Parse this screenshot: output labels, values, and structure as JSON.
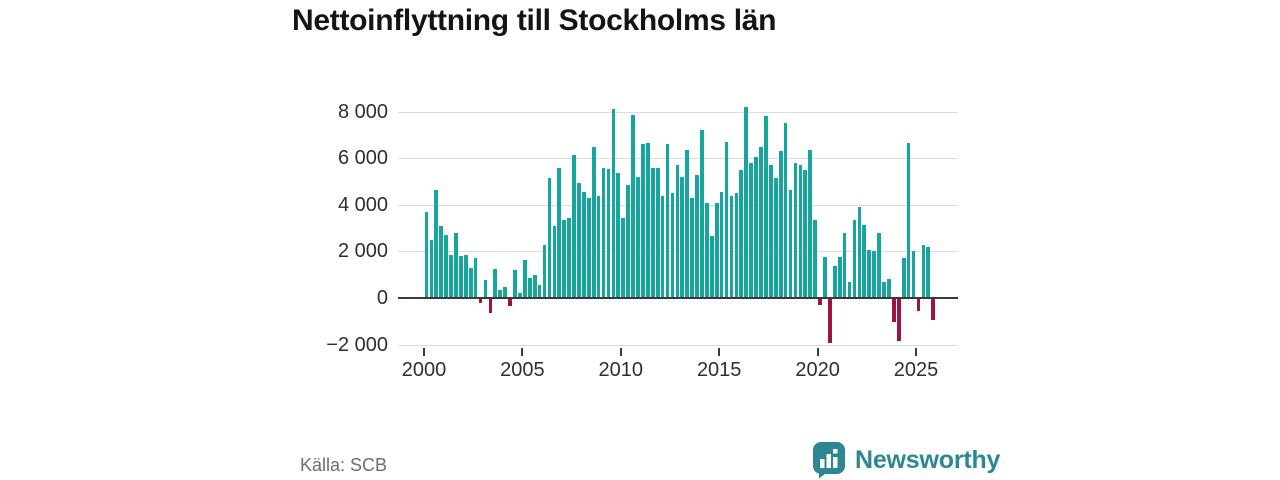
{
  "title": "Nettoinflyttning till Stockholms län",
  "source": "Källa: SCB",
  "brand": {
    "name": "Newsworthy"
  },
  "colors": {
    "bar_positive": "#16a69d",
    "bar_negative": "#9e1343",
    "brand_teal": "#2c8795",
    "gridline": "#dcdcdc",
    "axis": "#3a3a3a"
  },
  "chart_data": {
    "type": "bar",
    "title": "Nettoinflyttning till Stockholms län",
    "xlabel": "",
    "ylabel": "",
    "frequency": "quarterly",
    "start_period": "2000Q1",
    "end_period": "2025Q4",
    "ylim": [
      -2000,
      8000
    ],
    "grid": true,
    "y_ticks": [
      {
        "value": 8000,
        "label": "8 000"
      },
      {
        "value": 6000,
        "label": "6 000"
      },
      {
        "value": 4000,
        "label": "4 000"
      },
      {
        "value": 2000,
        "label": "2 000"
      },
      {
        "value": 0,
        "label": "0"
      },
      {
        "value": -2000,
        "label": "−2 000"
      }
    ],
    "x_ticks": [
      {
        "year": 2000,
        "label": "2000"
      },
      {
        "year": 2005,
        "label": "2005"
      },
      {
        "year": 2010,
        "label": "2010"
      },
      {
        "year": 2015,
        "label": "2015"
      },
      {
        "year": 2020,
        "label": "2020"
      },
      {
        "year": 2025,
        "label": "2025"
      }
    ],
    "values": [
      3700,
      2500,
      4650,
      3100,
      2700,
      1850,
      2800,
      1800,
      1840,
      1270,
      1700,
      -170,
      770,
      -590,
      1230,
      340,
      460,
      -300,
      1200,
      230,
      1630,
      860,
      1000,
      550,
      2270,
      5130,
      3070,
      5570,
      3360,
      3430,
      6140,
      4930,
      4570,
      4290,
      6500,
      4360,
      5570,
      5540,
      8100,
      5360,
      3430,
      4860,
      7850,
      5200,
      6600,
      6650,
      5560,
      5560,
      4370,
      6600,
      4510,
      5700,
      5200,
      6370,
      4300,
      5290,
      7190,
      4070,
      2640,
      4070,
      4570,
      6710,
      4360,
      4500,
      5500,
      8200,
      5810,
      6070,
      6470,
      7810,
      5710,
      5140,
      6290,
      7500,
      4640,
      5810,
      5700,
      5500,
      6340,
      3340,
      -250,
      1770,
      -1900,
      1370,
      1740,
      2770,
      700,
      3340,
      3900,
      3130,
      2060,
      2030,
      2770,
      700,
      800,
      -970,
      -1800,
      1700,
      6650,
      2000,
      -500,
      2270,
      2170,
      -900
    ]
  }
}
